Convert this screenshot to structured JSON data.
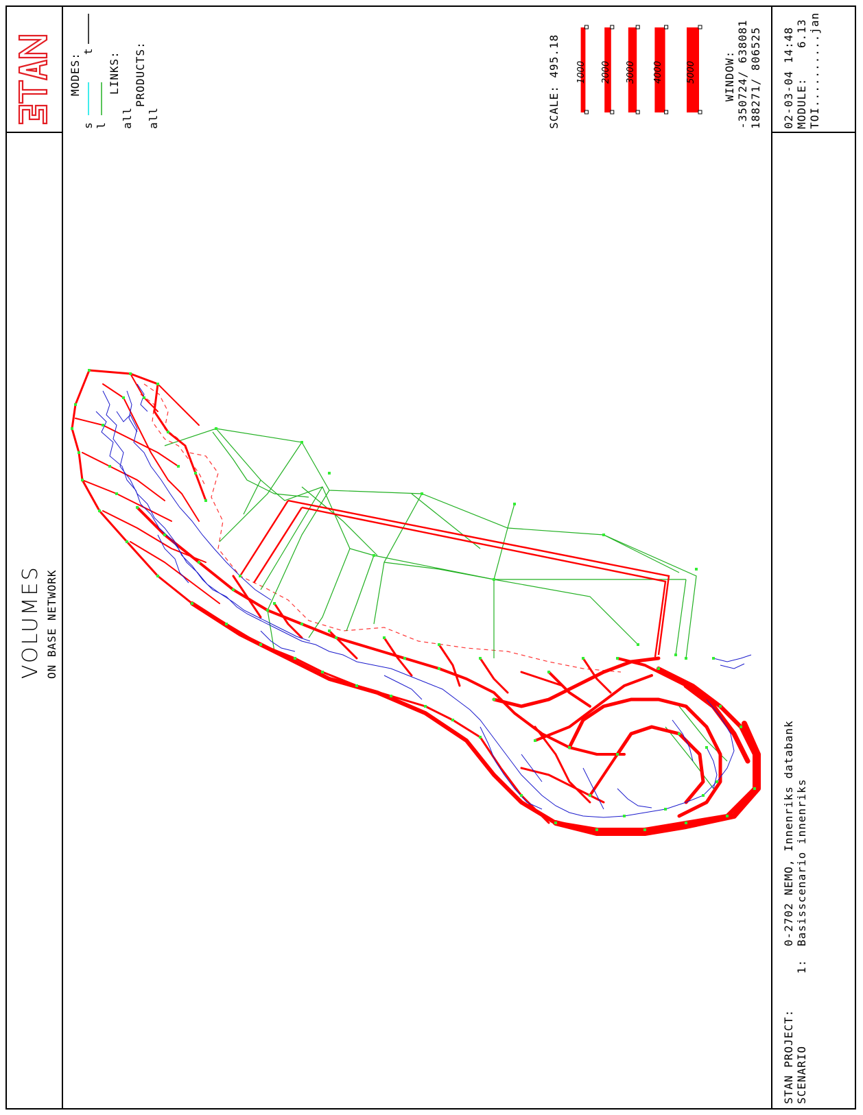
{
  "header": {
    "logo_text": "STAN",
    "modes_label": "MODES:",
    "modes": [
      {
        "code": "s",
        "color": "#00e5e5"
      },
      {
        "code": "t",
        "color": "#000000"
      },
      {
        "code": "l",
        "color": "#22b022"
      }
    ],
    "links_label": "LINKS:",
    "links_value": "all",
    "products_label": "PRODUCTS:",
    "products_value": "all",
    "scale_label": "SCALE: 495.18",
    "scale_legend": [
      {
        "label": "1000",
        "value": 1000
      },
      {
        "label": "2000",
        "value": 2000
      },
      {
        "label": "3000",
        "value": 3000
      },
      {
        "label": "4000",
        "value": 4000
      },
      {
        "label": "5000",
        "value": 5000
      }
    ],
    "window_label": "WINDOW:",
    "window_line1": "-350724/ 638081",
    "window_line2": "188271/ 806525",
    "date_time": "02-03-04 14:48",
    "module_label": "MODULE:",
    "module_value": "6.13",
    "toi_label": "TOI..........jan"
  },
  "title": {
    "main": "VOLUMES",
    "sub": "ON BASE NETWORK"
  },
  "footer": {
    "project_label": "STAN PROJECT:",
    "project_value": "0-2702 NEMO, Innenriks databank",
    "scenario_label": "SCENARIO",
    "scenario_number": "1:",
    "scenario_value": "Basisscenario innenriks"
  },
  "colors": {
    "volume": "#ff0000",
    "road_network": "#0000cc",
    "sea_links": "#22b022",
    "nodes": "#33ee33",
    "border": "#000000"
  }
}
